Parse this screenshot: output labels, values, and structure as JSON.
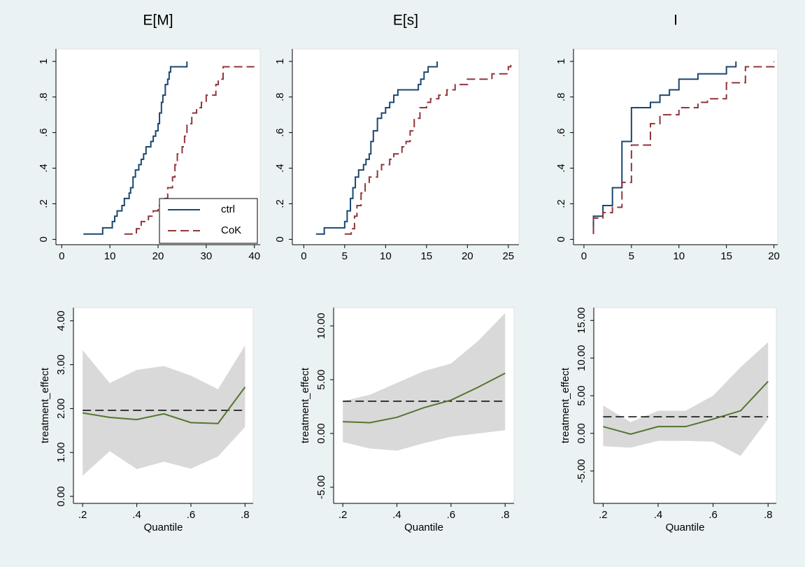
{
  "chart_data": [
    {
      "type": "step",
      "title": "E[M]",
      "xlim": [
        -1.2,
        41.2
      ],
      "ylim": [
        -0.03,
        1.07
      ],
      "xticks": [
        0,
        10,
        20,
        30,
        40
      ],
      "yticks": [
        0,
        {
          "value": 0.2,
          "label": ".2"
        },
        {
          "value": 0.4,
          "label": ".4"
        },
        {
          "value": 0.6,
          "label": ".6"
        },
        {
          "value": 0.8,
          "label": ".8"
        },
        1
      ],
      "legend": "lower right",
      "series": [
        {
          "name": "ctrl",
          "color": "#1a476f",
          "dash": false,
          "x": [
            4.5,
            8.5,
            10.5,
            11,
            11.5,
            12.5,
            13,
            14,
            14.3,
            14.8,
            15.3,
            16,
            16.5,
            17,
            17.5,
            18.5,
            19,
            19.5,
            20,
            20.3,
            20.7,
            21,
            21.5,
            22,
            22.3,
            22.6,
            26
          ],
          "values": [
            0.03,
            0.065,
            0.1,
            0.13,
            0.16,
            0.19,
            0.23,
            0.26,
            0.29,
            0.35,
            0.39,
            0.42,
            0.45,
            0.48,
            0.52,
            0.55,
            0.58,
            0.61,
            0.65,
            0.71,
            0.77,
            0.81,
            0.87,
            0.9,
            0.94,
            0.97,
            1
          ]
        },
        {
          "name": "CoK",
          "color": "#90353b",
          "dash": true,
          "x": [
            13,
            15.5,
            16.5,
            18,
            19,
            20,
            21,
            22,
            23,
            23.5,
            24,
            25,
            25.5,
            26,
            27,
            28,
            29,
            30,
            32,
            32.5,
            33.5,
            40
          ],
          "values": [
            0.03,
            0.06,
            0.1,
            0.13,
            0.16,
            0.19,
            0.23,
            0.29,
            0.35,
            0.42,
            0.48,
            0.52,
            0.58,
            0.65,
            0.71,
            0.74,
            0.77,
            0.81,
            0.87,
            0.9,
            0.97,
            0.97
          ]
        }
      ]
    },
    {
      "type": "step",
      "title": "E[s]",
      "xlim": [
        -1.4,
        26.3
      ],
      "ylim": [
        -0.03,
        1.07
      ],
      "xticks": [
        0,
        5,
        10,
        15,
        20,
        25
      ],
      "yticks": [
        0,
        {
          "value": 0.2,
          "label": ".2"
        },
        {
          "value": 0.4,
          "label": ".4"
        },
        {
          "value": 0.6,
          "label": ".6"
        },
        {
          "value": 0.8,
          "label": ".8"
        },
        1
      ],
      "series": [
        {
          "color": "#1a476f",
          "dash": false,
          "x": [
            1.5,
            2.5,
            5,
            5.3,
            5.7,
            6,
            6.3,
            6.7,
            7.3,
            7.6,
            8,
            8.2,
            8.5,
            9,
            9.5,
            10,
            10.5,
            11,
            11.5,
            14,
            14.3,
            14.7,
            15.2,
            16.3
          ],
          "values": [
            0.03,
            0.065,
            0.1,
            0.16,
            0.23,
            0.29,
            0.35,
            0.39,
            0.42,
            0.45,
            0.48,
            0.55,
            0.61,
            0.68,
            0.71,
            0.74,
            0.77,
            0.81,
            0.84,
            0.87,
            0.9,
            0.94,
            0.97,
            1
          ]
        },
        {
          "color": "#90353b",
          "dash": true,
          "x": [
            5,
            5.8,
            6.2,
            6.5,
            7,
            7.5,
            8,
            9,
            9.5,
            10.5,
            11,
            12,
            12.5,
            13,
            13.5,
            14.2,
            15,
            15.5,
            16.5,
            17.5,
            18.5,
            20,
            23,
            25,
            25.3
          ],
          "values": [
            0.03,
            0.06,
            0.13,
            0.19,
            0.26,
            0.32,
            0.35,
            0.39,
            0.42,
            0.45,
            0.48,
            0.52,
            0.55,
            0.61,
            0.68,
            0.74,
            0.77,
            0.79,
            0.81,
            0.84,
            0.87,
            0.9,
            0.93,
            0.97,
            0.98
          ]
        }
      ]
    },
    {
      "type": "step",
      "title": "I",
      "xlim": [
        -1.1,
        20.4
      ],
      "ylim": [
        -0.03,
        1.07
      ],
      "xticks": [
        0,
        5,
        10,
        15,
        20
      ],
      "yticks": [
        0,
        {
          "value": 0.2,
          "label": ".2"
        },
        {
          "value": 0.4,
          "label": ".4"
        },
        {
          "value": 0.6,
          "label": ".6"
        },
        {
          "value": 0.8,
          "label": ".8"
        },
        1
      ],
      "series": [
        {
          "color": "#1a476f",
          "dash": false,
          "x": [
            1,
            1,
            2,
            3,
            4,
            5,
            7,
            8,
            9,
            10,
            12,
            15,
            16
          ],
          "values": [
            0.03,
            0.13,
            0.19,
            0.29,
            0.55,
            0.74,
            0.77,
            0.81,
            0.84,
            0.9,
            0.93,
            0.97,
            1
          ]
        },
        {
          "color": "#90353b",
          "dash": true,
          "x": [
            1,
            1,
            2,
            3,
            4,
            5,
            7,
            8,
            10,
            12,
            13,
            15,
            17,
            20
          ],
          "values": [
            0.03,
            0.12,
            0.15,
            0.18,
            0.32,
            0.53,
            0.65,
            0.7,
            0.74,
            0.77,
            0.79,
            0.88,
            0.97,
            1
          ]
        }
      ]
    },
    {
      "type": "line",
      "xlabel": "Quantile",
      "ylabel": "treatment_effect",
      "xlim": [
        0.166,
        0.83
      ],
      "ylim": [
        -0.16,
        4.3
      ],
      "xticks": [
        {
          "value": 0.2,
          "label": ".2"
        },
        {
          "value": 0.4,
          "label": ".4"
        },
        {
          "value": 0.6,
          "label": ".6"
        },
        {
          "value": 0.8,
          "label": ".8"
        }
      ],
      "yticks": [
        {
          "value": 0,
          "label": "0.00"
        },
        {
          "value": 1,
          "label": "1.00"
        },
        {
          "value": 2,
          "label": "2.00"
        },
        {
          "value": 3,
          "label": "3.00"
        },
        {
          "value": 4,
          "label": "4.00"
        }
      ],
      "x": [
        0.2,
        0.3,
        0.4,
        0.5,
        0.6,
        0.7,
        0.8
      ],
      "band": {
        "color": "#d9d9d9",
        "lower": [
          0.47,
          1.03,
          0.62,
          0.79,
          0.63,
          0.91,
          1.58
        ],
        "upper": [
          3.33,
          2.58,
          2.88,
          2.97,
          2.75,
          2.44,
          3.44
        ]
      },
      "series": [
        {
          "color": "#55752f",
          "values": [
            1.9,
            1.8,
            1.75,
            1.88,
            1.68,
            1.66,
            2.49
          ]
        }
      ],
      "hline": {
        "value": 1.96,
        "color": "#000000"
      }
    },
    {
      "type": "line",
      "xlabel": "Quantile",
      "ylabel": "treatment_effect",
      "xlim": [
        0.166,
        0.833
      ],
      "ylim": [
        -6.5,
        11.7
      ],
      "xticks": [
        {
          "value": 0.2,
          "label": ".2"
        },
        {
          "value": 0.4,
          "label": ".4"
        },
        {
          "value": 0.6,
          "label": ".6"
        },
        {
          "value": 0.8,
          "label": ".8"
        }
      ],
      "yticks": [
        {
          "value": -5,
          "label": "-5.00"
        },
        {
          "value": 0,
          "label": "0.00"
        },
        {
          "value": 5,
          "label": "5.00"
        },
        {
          "value": 10,
          "label": "10.00"
        }
      ],
      "x": [
        0.2,
        0.3,
        0.4,
        0.5,
        0.6,
        0.7,
        0.8
      ],
      "band": {
        "color": "#d9d9d9",
        "lower": [
          -0.8,
          -1.4,
          -1.6,
          -0.9,
          -0.3,
          0,
          0.3
        ],
        "upper": [
          3.0,
          3.6,
          4.7,
          5.8,
          6.5,
          8.6,
          11.2
        ]
      },
      "series": [
        {
          "color": "#55752f",
          "values": [
            1.1,
            1.0,
            1.5,
            2.4,
            3.1,
            4.3,
            5.6
          ]
        }
      ],
      "hline": {
        "value": 3.0,
        "color": "#000000"
      }
    },
    {
      "type": "line",
      "xlabel": "Quantile",
      "ylabel": "treatment_effect",
      "xlim": [
        0.166,
        0.83
      ],
      "ylim": [
        -9.3,
        16.7
      ],
      "xticks": [
        {
          "value": 0.2,
          "label": ".2"
        },
        {
          "value": 0.4,
          "label": ".4"
        },
        {
          "value": 0.6,
          "label": ".6"
        },
        {
          "value": 0.8,
          "label": ".8"
        }
      ],
      "yticks": [
        {
          "value": -5,
          "label": "-5.00"
        },
        {
          "value": 0,
          "label": "0.00"
        },
        {
          "value": 5,
          "label": "5.00"
        },
        {
          "value": 10,
          "label": "10.00"
        },
        {
          "value": 15,
          "label": "15.00"
        }
      ],
      "x": [
        0.2,
        0.3,
        0.4,
        0.5,
        0.6,
        0.7,
        0.8
      ],
      "band": {
        "color": "#d9d9d9",
        "lower": [
          -1.7,
          -1.9,
          -1.0,
          -1.0,
          -1.1,
          -3.0,
          1.9
        ],
        "upper": [
          3.7,
          1.5,
          3.0,
          3.0,
          5.0,
          8.8,
          12.1
        ]
      },
      "series": [
        {
          "color": "#55752f",
          "values": [
            0.9,
            -0.1,
            0.9,
            0.9,
            1.9,
            3.0,
            6.9
          ]
        }
      ],
      "hline": {
        "value": 2.2,
        "color": "#000000"
      }
    }
  ]
}
